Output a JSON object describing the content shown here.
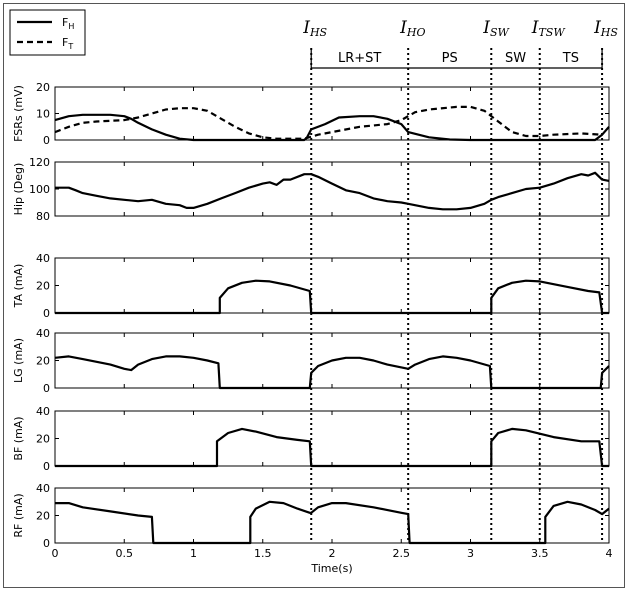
{
  "legend": {
    "items": [
      {
        "label": "F",
        "sub": "H",
        "style": "solid"
      },
      {
        "label": "F",
        "sub": "T",
        "style": "dashed"
      }
    ]
  },
  "events": [
    {
      "label": "I",
      "sub": "HS",
      "x": 1.85
    },
    {
      "label": "I",
      "sub": "HO",
      "x": 2.55
    },
    {
      "label": "I",
      "sub": "SW",
      "x": 3.15
    },
    {
      "label": "I",
      "sub": "TSW",
      "x": 3.5
    },
    {
      "label": "I",
      "sub": "HS",
      "x": 3.95
    }
  ],
  "phases": [
    {
      "label": "LR+ST",
      "from": 1.85,
      "to": 2.55
    },
    {
      "label": "PS",
      "from": 2.55,
      "to": 3.15
    },
    {
      "label": "SW",
      "from": 3.15,
      "to": 3.5
    },
    {
      "label": "TS",
      "from": 3.5,
      "to": 3.95
    }
  ],
  "xaxis": {
    "label": "Time(s)",
    "ticks": [
      "0",
      "0.5",
      "1",
      "1.5",
      "2",
      "2.5",
      "3",
      "3.5",
      "4"
    ]
  },
  "chart_data": [
    {
      "type": "line",
      "ylabel": "FSRs (mV)",
      "ylim": [
        0,
        20
      ],
      "yticks": [
        "0",
        "10",
        "20"
      ],
      "xlim": [
        0,
        4
      ],
      "series": [
        {
          "name": "F_H",
          "style": "solid",
          "points": [
            [
              0,
              7.5
            ],
            [
              0.1,
              9
            ],
            [
              0.2,
              9.5
            ],
            [
              0.3,
              9.5
            ],
            [
              0.4,
              9.5
            ],
            [
              0.5,
              9
            ],
            [
              0.55,
              8
            ],
            [
              0.6,
              6.5
            ],
            [
              0.7,
              4
            ],
            [
              0.8,
              2
            ],
            [
              0.9,
              0.5
            ],
            [
              1.0,
              0
            ],
            [
              1.2,
              0
            ],
            [
              1.5,
              0
            ],
            [
              1.8,
              0
            ],
            [
              1.82,
              1
            ],
            [
              1.85,
              4
            ],
            [
              1.95,
              6
            ],
            [
              2.05,
              8.5
            ],
            [
              2.2,
              9
            ],
            [
              2.3,
              9
            ],
            [
              2.4,
              8
            ],
            [
              2.5,
              6
            ],
            [
              2.55,
              3
            ],
            [
              2.7,
              1
            ],
            [
              2.85,
              0.2
            ],
            [
              3.0,
              0
            ],
            [
              3.5,
              0
            ],
            [
              3.9,
              0
            ],
            [
              3.95,
              2
            ],
            [
              4.0,
              5
            ]
          ]
        },
        {
          "name": "F_T",
          "style": "dashed",
          "points": [
            [
              0,
              3
            ],
            [
              0.1,
              5
            ],
            [
              0.2,
              6.5
            ],
            [
              0.3,
              7
            ],
            [
              0.5,
              7.5
            ],
            [
              0.6,
              8.5
            ],
            [
              0.7,
              10
            ],
            [
              0.8,
              11.5
            ],
            [
              0.9,
              12
            ],
            [
              1.0,
              12
            ],
            [
              1.1,
              11
            ],
            [
              1.2,
              8
            ],
            [
              1.3,
              5
            ],
            [
              1.4,
              2.5
            ],
            [
              1.5,
              1
            ],
            [
              1.6,
              0.5
            ],
            [
              1.8,
              0.5
            ],
            [
              1.9,
              2
            ],
            [
              2.0,
              3
            ],
            [
              2.2,
              5
            ],
            [
              2.4,
              6
            ],
            [
              2.5,
              7.5
            ],
            [
              2.6,
              10.5
            ],
            [
              2.7,
              11.5
            ],
            [
              2.9,
              12.5
            ],
            [
              3.0,
              12.5
            ],
            [
              3.1,
              11
            ],
            [
              3.2,
              7
            ],
            [
              3.3,
              3
            ],
            [
              3.4,
              1.5
            ],
            [
              3.5,
              1.5
            ],
            [
              3.6,
              2
            ],
            [
              3.8,
              2.5
            ],
            [
              3.95,
              2
            ]
          ]
        }
      ]
    },
    {
      "type": "line",
      "ylabel": "Hip (Deg)",
      "ylim": [
        80,
        120
      ],
      "yticks": [
        "80",
        "100",
        "120"
      ],
      "xlim": [
        0,
        4
      ],
      "series": [
        {
          "name": "Hip",
          "style": "solid",
          "points": [
            [
              0,
              101
            ],
            [
              0.1,
              101
            ],
            [
              0.15,
              99
            ],
            [
              0.2,
              97
            ],
            [
              0.3,
              95
            ],
            [
              0.4,
              93
            ],
            [
              0.5,
              92
            ],
            [
              0.6,
              91
            ],
            [
              0.7,
              92
            ],
            [
              0.8,
              89
            ],
            [
              0.9,
              88
            ],
            [
              0.95,
              86
            ],
            [
              1.0,
              86
            ],
            [
              1.1,
              89
            ],
            [
              1.2,
              93
            ],
            [
              1.3,
              97
            ],
            [
              1.4,
              101
            ],
            [
              1.5,
              104
            ],
            [
              1.55,
              105
            ],
            [
              1.6,
              103
            ],
            [
              1.65,
              107
            ],
            [
              1.7,
              107
            ],
            [
              1.8,
              111
            ],
            [
              1.85,
              111
            ],
            [
              1.9,
              109
            ],
            [
              2.0,
              104
            ],
            [
              2.1,
              99
            ],
            [
              2.2,
              97
            ],
            [
              2.3,
              93
            ],
            [
              2.4,
              91
            ],
            [
              2.5,
              90
            ],
            [
              2.55,
              89
            ],
            [
              2.6,
              88
            ],
            [
              2.7,
              86
            ],
            [
              2.8,
              85
            ],
            [
              2.9,
              85
            ],
            [
              3.0,
              86
            ],
            [
              3.1,
              89
            ],
            [
              3.15,
              92
            ],
            [
              3.2,
              94
            ],
            [
              3.3,
              97
            ],
            [
              3.4,
              100
            ],
            [
              3.5,
              101
            ],
            [
              3.6,
              104
            ],
            [
              3.7,
              108
            ],
            [
              3.8,
              111
            ],
            [
              3.85,
              110
            ],
            [
              3.9,
              112
            ],
            [
              3.95,
              107
            ],
            [
              4.0,
              106
            ]
          ]
        }
      ]
    },
    {
      "type": "line",
      "ylabel": "TA (mA)",
      "ylim": [
        0,
        40
      ],
      "yticks": [
        "0",
        "20",
        "40"
      ],
      "xlim": [
        0,
        4
      ],
      "series": [
        {
          "name": "TA",
          "style": "solid",
          "points": [
            [
              0,
              0
            ],
            [
              1.19,
              0
            ],
            [
              1.19,
              11
            ],
            [
              1.25,
              18
            ],
            [
              1.35,
              22
            ],
            [
              1.45,
              23.5
            ],
            [
              1.55,
              23
            ],
            [
              1.7,
              20
            ],
            [
              1.84,
              16
            ],
            [
              1.85,
              0
            ],
            [
              3.15,
              0
            ],
            [
              3.15,
              11
            ],
            [
              3.2,
              18
            ],
            [
              3.3,
              22
            ],
            [
              3.4,
              23.5
            ],
            [
              3.5,
              23
            ],
            [
              3.7,
              19
            ],
            [
              3.85,
              16
            ],
            [
              3.93,
              15
            ],
            [
              3.95,
              0
            ],
            [
              4.0,
              0
            ]
          ]
        }
      ]
    },
    {
      "type": "line",
      "ylabel": "LG (mA)",
      "ylim": [
        0,
        40
      ],
      "yticks": [
        "0",
        "20",
        "40"
      ],
      "xlim": [
        0,
        4
      ],
      "series": [
        {
          "name": "LG",
          "style": "solid",
          "points": [
            [
              0,
              22
            ],
            [
              0.1,
              23
            ],
            [
              0.2,
              21
            ],
            [
              0.4,
              17
            ],
            [
              0.5,
              14
            ],
            [
              0.55,
              13
            ],
            [
              0.6,
              17
            ],
            [
              0.7,
              21
            ],
            [
              0.8,
              23
            ],
            [
              0.9,
              23
            ],
            [
              1.0,
              22
            ],
            [
              1.1,
              20
            ],
            [
              1.18,
              18
            ],
            [
              1.19,
              0
            ],
            [
              1.84,
              0
            ],
            [
              1.85,
              11
            ],
            [
              1.9,
              16
            ],
            [
              2.0,
              20
            ],
            [
              2.1,
              22
            ],
            [
              2.2,
              22
            ],
            [
              2.3,
              20
            ],
            [
              2.4,
              17
            ],
            [
              2.55,
              14
            ],
            [
              2.6,
              17
            ],
            [
              2.7,
              21
            ],
            [
              2.8,
              23
            ],
            [
              2.9,
              22
            ],
            [
              3.0,
              20
            ],
            [
              3.14,
              16
            ],
            [
              3.15,
              0
            ],
            [
              3.94,
              0
            ],
            [
              3.95,
              11
            ],
            [
              4.0,
              16
            ]
          ]
        }
      ]
    },
    {
      "type": "line",
      "ylabel": "BF (mA)",
      "ylim": [
        0,
        40
      ],
      "yticks": [
        "0",
        "20",
        "40"
      ],
      "xlim": [
        0,
        4
      ],
      "series": [
        {
          "name": "BF",
          "style": "solid",
          "points": [
            [
              0,
              0
            ],
            [
              0.6,
              0
            ],
            [
              1.17,
              0
            ],
            [
              1.17,
              18
            ],
            [
              1.25,
              24
            ],
            [
              1.35,
              27
            ],
            [
              1.45,
              25
            ],
            [
              1.6,
              21
            ],
            [
              1.75,
              19
            ],
            [
              1.84,
              18
            ],
            [
              1.85,
              0
            ],
            [
              3.15,
              0
            ],
            [
              3.15,
              18
            ],
            [
              3.2,
              24
            ],
            [
              3.3,
              27
            ],
            [
              3.4,
              26
            ],
            [
              3.6,
              21
            ],
            [
              3.8,
              18
            ],
            [
              3.93,
              18
            ],
            [
              3.95,
              0
            ],
            [
              4.0,
              0
            ]
          ]
        }
      ]
    },
    {
      "type": "line",
      "ylabel": "RF (mA)",
      "ylim": [
        0,
        40
      ],
      "yticks": [
        "0",
        "20",
        "40"
      ],
      "xlim": [
        0,
        4
      ],
      "series": [
        {
          "name": "RF",
          "style": "solid",
          "points": [
            [
              0,
              29
            ],
            [
              0.1,
              29
            ],
            [
              0.2,
              26
            ],
            [
              0.4,
              23
            ],
            [
              0.6,
              20
            ],
            [
              0.7,
              19
            ],
            [
              0.71,
              0
            ],
            [
              1.41,
              0
            ],
            [
              1.41,
              19
            ],
            [
              1.45,
              25
            ],
            [
              1.55,
              30
            ],
            [
              1.65,
              29
            ],
            [
              1.75,
              25
            ],
            [
              1.84,
              22
            ],
            [
              1.85,
              22
            ],
            [
              1.9,
              26
            ],
            [
              2.0,
              29
            ],
            [
              2.1,
              29
            ],
            [
              2.3,
              26
            ],
            [
              2.5,
              22
            ],
            [
              2.55,
              21
            ],
            [
              2.56,
              0
            ],
            [
              3.54,
              0
            ],
            [
              3.54,
              19
            ],
            [
              3.6,
              27
            ],
            [
              3.7,
              30
            ],
            [
              3.8,
              28
            ],
            [
              3.9,
              24
            ],
            [
              3.95,
              21
            ],
            [
              4.0,
              25
            ]
          ]
        }
      ]
    }
  ]
}
